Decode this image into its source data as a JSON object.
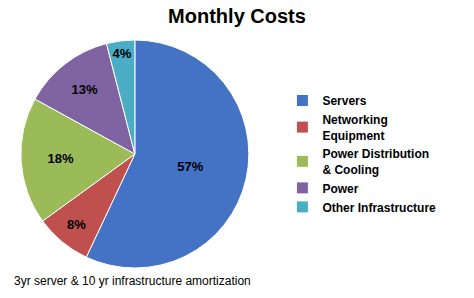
{
  "chart_data": {
    "type": "pie",
    "title": "Monthly Costs",
    "subtitle": "3yr server & 10 yr infrastructure amortization",
    "categories": [
      "Servers",
      "Networking\nEquipment",
      "Power Distribution\n& Cooling",
      "Power",
      "Other Infrastructure"
    ],
    "values": [
      57,
      8,
      18,
      13,
      4
    ],
    "value_labels": [
      "57%",
      "8%",
      "18%",
      "13%",
      "4%"
    ],
    "colors": [
      "#4472C4",
      "#C0504D",
      "#9BBB59",
      "#8064A2",
      "#4BACC6"
    ],
    "data_labels": true,
    "legend": "right"
  }
}
